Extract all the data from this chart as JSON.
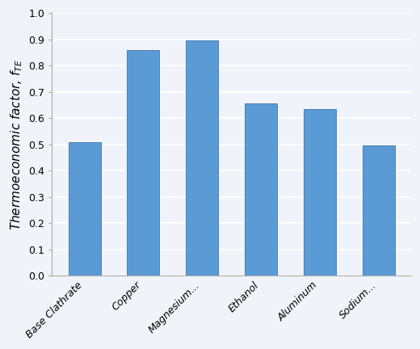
{
  "categories": [
    "Base Clathrate",
    "Copper",
    "Magnesium...",
    "Ethanol",
    "Aluminum",
    "Sodium..."
  ],
  "values": [
    0.51,
    0.86,
    0.895,
    0.655,
    0.635,
    0.495
  ],
  "bar_color": "#5b9bd5",
  "ylabel": "Thermoeconomic factor, $f_{TE}$",
  "ylim": [
    0.0,
    1.0
  ],
  "yticks": [
    0.0,
    0.1,
    0.2,
    0.3,
    0.4,
    0.5,
    0.6,
    0.7,
    0.8,
    0.9,
    1.0
  ],
  "background_color": "#f0f4fa",
  "grid_color": "#ffffff",
  "bar_edge_color": "#4a7fb5",
  "xlabel_fontsize": 10,
  "ylabel_fontsize": 11,
  "tick_fontsize": 9
}
